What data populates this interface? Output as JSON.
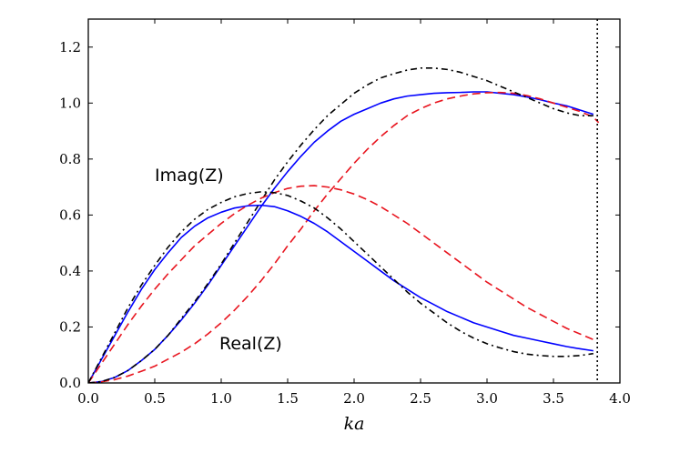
{
  "chart_data": {
    "type": "line",
    "title": "",
    "xlabel": "ka",
    "ylabel": "",
    "xlim": [
      0.0,
      4.0
    ],
    "ylim": [
      0.0,
      1.3
    ],
    "xticks": [
      "0.0",
      "0.5",
      "1.0",
      "1.5",
      "2.0",
      "2.5",
      "3.0",
      "3.5",
      "4.0"
    ],
    "yticks": [
      "0.0",
      "0.2",
      "0.4",
      "0.6",
      "0.8",
      "1.0",
      "1.2"
    ],
    "grid": false,
    "vline": {
      "x": 3.83,
      "style": "dotted",
      "color": "#000000"
    },
    "annotations": [
      {
        "text": "Imag(Z)",
        "x": 0.75,
        "y": 0.76
      },
      {
        "text": "Real(Z)",
        "x": 1.02,
        "y": 0.13
      }
    ],
    "series": [
      {
        "name": "Real(Z) blue",
        "group": "real",
        "color": "#0000ff",
        "style": "solid",
        "x": [
          0.0,
          0.1,
          0.2,
          0.3,
          0.4,
          0.5,
          0.6,
          0.7,
          0.8,
          0.9,
          1.0,
          1.1,
          1.2,
          1.3,
          1.4,
          1.5,
          1.6,
          1.7,
          1.8,
          1.9,
          2.0,
          2.1,
          2.2,
          2.3,
          2.4,
          2.5,
          2.6,
          2.7,
          2.8,
          2.9,
          3.0,
          3.1,
          3.2,
          3.3,
          3.4,
          3.5,
          3.6,
          3.7,
          3.8
        ],
        "y": [
          0.0,
          0.005,
          0.02,
          0.045,
          0.08,
          0.12,
          0.17,
          0.225,
          0.285,
          0.35,
          0.42,
          0.49,
          0.56,
          0.63,
          0.695,
          0.755,
          0.81,
          0.86,
          0.9,
          0.935,
          0.96,
          0.98,
          1.0,
          1.015,
          1.025,
          1.03,
          1.035,
          1.037,
          1.038,
          1.04,
          1.04,
          1.035,
          1.03,
          1.022,
          1.012,
          1.0,
          0.99,
          0.975,
          0.96
        ]
      },
      {
        "name": "Real(Z) red",
        "group": "real",
        "color": "#e8141e",
        "style": "dashed",
        "x": [
          0.0,
          0.1,
          0.2,
          0.3,
          0.4,
          0.5,
          0.6,
          0.7,
          0.8,
          0.9,
          1.0,
          1.1,
          1.2,
          1.3,
          1.4,
          1.5,
          1.6,
          1.7,
          1.8,
          1.9,
          2.0,
          2.1,
          2.2,
          2.3,
          2.4,
          2.5,
          2.6,
          2.7,
          2.8,
          2.9,
          3.0,
          3.1,
          3.2,
          3.3,
          3.4,
          3.5,
          3.6,
          3.7,
          3.8,
          3.84
        ],
        "y": [
          0.0,
          0.004,
          0.012,
          0.025,
          0.042,
          0.06,
          0.085,
          0.11,
          0.14,
          0.175,
          0.215,
          0.26,
          0.31,
          0.365,
          0.425,
          0.49,
          0.55,
          0.615,
          0.675,
          0.73,
          0.785,
          0.835,
          0.88,
          0.92,
          0.955,
          0.98,
          1.0,
          1.015,
          1.025,
          1.033,
          1.037,
          1.038,
          1.035,
          1.027,
          1.015,
          1.0,
          0.985,
          0.97,
          0.95,
          0.93
        ]
      },
      {
        "name": "Real(Z) black",
        "group": "real",
        "color": "#000000",
        "style": "dashdot",
        "x": [
          0.0,
          0.1,
          0.2,
          0.3,
          0.4,
          0.5,
          0.6,
          0.7,
          0.8,
          0.9,
          1.0,
          1.1,
          1.2,
          1.3,
          1.4,
          1.5,
          1.6,
          1.7,
          1.8,
          1.9,
          2.0,
          2.1,
          2.2,
          2.3,
          2.4,
          2.5,
          2.6,
          2.7,
          2.8,
          2.9,
          3.0,
          3.1,
          3.2,
          3.3,
          3.4,
          3.5,
          3.6,
          3.7,
          3.8
        ],
        "y": [
          0.0,
          0.005,
          0.02,
          0.045,
          0.08,
          0.12,
          0.17,
          0.23,
          0.29,
          0.355,
          0.425,
          0.5,
          0.575,
          0.65,
          0.725,
          0.79,
          0.85,
          0.905,
          0.955,
          0.995,
          1.035,
          1.065,
          1.09,
          1.105,
          1.118,
          1.125,
          1.125,
          1.12,
          1.11,
          1.095,
          1.08,
          1.06,
          1.04,
          1.02,
          1.0,
          0.98,
          0.965,
          0.955,
          0.955
        ]
      },
      {
        "name": "Imag(Z) blue",
        "group": "imag",
        "color": "#0000ff",
        "style": "solid",
        "x": [
          0.0,
          0.1,
          0.2,
          0.3,
          0.4,
          0.5,
          0.6,
          0.7,
          0.8,
          0.9,
          1.0,
          1.1,
          1.2,
          1.3,
          1.4,
          1.5,
          1.6,
          1.7,
          1.8,
          1.9,
          2.0,
          2.1,
          2.2,
          2.3,
          2.4,
          2.5,
          2.6,
          2.7,
          2.8,
          2.9,
          3.0,
          3.1,
          3.2,
          3.3,
          3.4,
          3.5,
          3.6,
          3.7,
          3.8
        ],
        "y": [
          0.0,
          0.085,
          0.17,
          0.255,
          0.335,
          0.405,
          0.465,
          0.52,
          0.56,
          0.59,
          0.61,
          0.625,
          0.633,
          0.635,
          0.63,
          0.615,
          0.595,
          0.57,
          0.54,
          0.505,
          0.47,
          0.435,
          0.4,
          0.365,
          0.335,
          0.305,
          0.28,
          0.255,
          0.235,
          0.215,
          0.2,
          0.185,
          0.17,
          0.16,
          0.15,
          0.14,
          0.13,
          0.122,
          0.115
        ]
      },
      {
        "name": "Imag(Z) red",
        "group": "imag",
        "color": "#e8141e",
        "style": "dashed",
        "x": [
          0.0,
          0.1,
          0.2,
          0.3,
          0.4,
          0.5,
          0.6,
          0.7,
          0.8,
          0.9,
          1.0,
          1.1,
          1.2,
          1.3,
          1.4,
          1.5,
          1.6,
          1.7,
          1.8,
          1.9,
          2.0,
          2.1,
          2.2,
          2.3,
          2.4,
          2.5,
          2.6,
          2.7,
          2.8,
          2.9,
          3.0,
          3.1,
          3.2,
          3.3,
          3.4,
          3.5,
          3.6,
          3.7,
          3.8
        ],
        "y": [
          0.0,
          0.07,
          0.14,
          0.21,
          0.275,
          0.335,
          0.39,
          0.44,
          0.49,
          0.53,
          0.57,
          0.605,
          0.635,
          0.66,
          0.68,
          0.695,
          0.703,
          0.705,
          0.7,
          0.69,
          0.675,
          0.655,
          0.63,
          0.6,
          0.57,
          0.535,
          0.5,
          0.465,
          0.43,
          0.395,
          0.36,
          0.33,
          0.3,
          0.27,
          0.245,
          0.22,
          0.195,
          0.175,
          0.155
        ]
      },
      {
        "name": "Imag(Z) black",
        "group": "imag",
        "color": "#000000",
        "style": "dashdot",
        "x": [
          0.0,
          0.1,
          0.2,
          0.3,
          0.4,
          0.5,
          0.6,
          0.7,
          0.8,
          0.9,
          1.0,
          1.1,
          1.2,
          1.3,
          1.4,
          1.5,
          1.6,
          1.7,
          1.8,
          1.9,
          2.0,
          2.1,
          2.2,
          2.3,
          2.4,
          2.5,
          2.6,
          2.7,
          2.8,
          2.9,
          3.0,
          3.1,
          3.2,
          3.3,
          3.4,
          3.5,
          3.6,
          3.7,
          3.8
        ],
        "y": [
          0.0,
          0.09,
          0.18,
          0.27,
          0.35,
          0.42,
          0.485,
          0.54,
          0.585,
          0.62,
          0.645,
          0.665,
          0.677,
          0.683,
          0.68,
          0.67,
          0.65,
          0.625,
          0.59,
          0.55,
          0.505,
          0.46,
          0.415,
          0.37,
          0.325,
          0.285,
          0.25,
          0.215,
          0.185,
          0.16,
          0.14,
          0.125,
          0.112,
          0.103,
          0.098,
          0.095,
          0.095,
          0.098,
          0.105
        ]
      }
    ]
  }
}
